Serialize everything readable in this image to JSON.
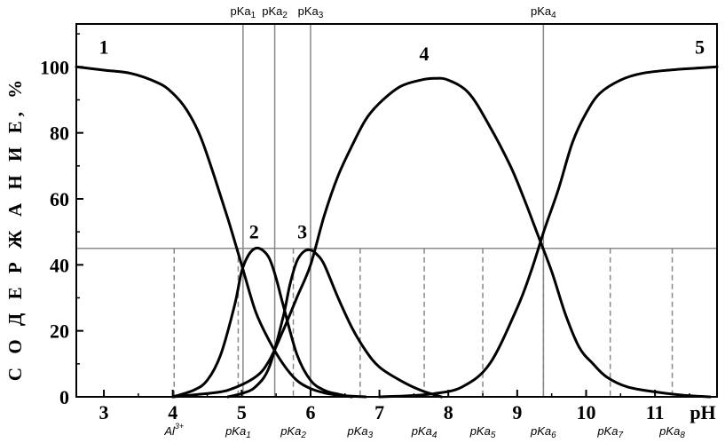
{
  "chart_data": {
    "type": "line",
    "title": "",
    "xlabel": "pH",
    "ylabel": "С О Д Е Р Ж А Н И Е, %",
    "xlim": [
      2.6,
      11.9
    ],
    "ylim": [
      0,
      113
    ],
    "x_ticks": [
      "3",
      "4",
      "5",
      "6",
      "7",
      "8",
      "9",
      "10",
      "11"
    ],
    "y_ticks": [
      "0",
      "20",
      "40",
      "60",
      "80",
      "100"
    ],
    "grid": false,
    "series": [
      {
        "name": "1",
        "x": [
          2.6,
          3.0,
          3.4,
          3.8,
          4.0,
          4.2,
          4.4,
          4.6,
          4.8,
          5.0,
          5.2,
          5.4,
          5.6,
          5.8,
          6.0,
          6.2,
          6.4,
          6.6,
          6.8
        ],
        "values": [
          100,
          99,
          98,
          95,
          92,
          87,
          79,
          67,
          54,
          40,
          26,
          17,
          10,
          5,
          2.5,
          1.2,
          0.5,
          0.2,
          0
        ]
      },
      {
        "name": "2",
        "x": [
          4.0,
          4.3,
          4.5,
          4.7,
          4.9,
          5.0,
          5.1,
          5.2,
          5.3,
          5.4,
          5.5,
          5.6,
          5.8,
          6.0,
          6.2,
          6.4,
          6.6
        ],
        "values": [
          0,
          2,
          5,
          13,
          28,
          38,
          43,
          45,
          44.5,
          42,
          36,
          28,
          13,
          5,
          2,
          0.8,
          0
        ]
      },
      {
        "name": "3",
        "x": [
          4.8,
          5.0,
          5.2,
          5.4,
          5.6,
          5.7,
          5.8,
          5.9,
          6.0,
          6.1,
          6.2,
          6.4,
          6.6,
          6.8,
          7.0,
          7.3,
          7.6,
          7.9
        ],
        "values": [
          0,
          1,
          3,
          9,
          24,
          34,
          41,
          44,
          44.5,
          43,
          40,
          30,
          21,
          14,
          9,
          5,
          2,
          0
        ]
      },
      {
        "name": "4",
        "x": [
          4.0,
          4.4,
          4.8,
          5.2,
          5.4,
          5.6,
          5.8,
          6.0,
          6.2,
          6.4,
          6.6,
          6.8,
          7.0,
          7.3,
          7.6,
          7.8,
          8.0,
          8.3,
          8.6,
          8.9,
          9.1,
          9.3,
          9.5,
          9.7,
          9.9,
          10.1,
          10.3,
          10.6,
          11.0,
          11.4,
          11.8
        ],
        "values": [
          0,
          0.8,
          2,
          6,
          11,
          20,
          30,
          40,
          55,
          67,
          76,
          84,
          89,
          94,
          96,
          96.5,
          96,
          92,
          82,
          70,
          60,
          49,
          38,
          25,
          15,
          10,
          6,
          3,
          1.5,
          0.5,
          0
        ]
      },
      {
        "name": "5",
        "x": [
          7.0,
          7.4,
          7.8,
          8.2,
          8.6,
          9.0,
          9.2,
          9.4,
          9.6,
          9.8,
          10.0,
          10.2,
          10.5,
          10.8,
          11.2,
          11.6,
          11.9
        ],
        "values": [
          0,
          0.3,
          1,
          3,
          10,
          27,
          38,
          51,
          63,
          77,
          86,
          92,
          96,
          98,
          99,
          99.6,
          100
        ]
      }
    ],
    "curve_labels": [
      {
        "text": "1",
        "x": 3.0,
        "y": 104
      },
      {
        "text": "2",
        "x": 5.18,
        "y": 48
      },
      {
        "text": "3",
        "x": 5.88,
        "y": 48
      },
      {
        "text": "4",
        "x": 7.65,
        "y": 102
      },
      {
        "text": "5",
        "x": 11.65,
        "y": 104
      }
    ],
    "reference_lines": {
      "horizontal_y": 45,
      "solid_vertical": [
        {
          "x": 5.02,
          "label_main": "pKa",
          "label_sub": "1"
        },
        {
          "x": 5.48,
          "label_main": "pKa",
          "label_sub": "2"
        },
        {
          "x": 6.0,
          "label_main": "pKa",
          "label_sub": "3"
        },
        {
          "x": 9.38,
          "label_main": "pKa",
          "label_sub": "4"
        }
      ],
      "dashed_vertical": [
        {
          "x": 4.02,
          "label_main": "Al",
          "label_sup": "3+"
        },
        {
          "x": 4.95,
          "label_main": "pKa",
          "label_sub": "1"
        },
        {
          "x": 5.75,
          "label_main": "pKa",
          "label_sub": "2"
        },
        {
          "x": 6.72,
          "label_main": "pKa",
          "label_sub": "3"
        },
        {
          "x": 7.65,
          "label_main": "pKa",
          "label_sub": "4"
        },
        {
          "x": 8.5,
          "label_main": "pKa",
          "label_sub": "5"
        },
        {
          "x": 9.38,
          "label_main": "pKa",
          "label_sub": "6"
        },
        {
          "x": 10.35,
          "label_main": "pKa",
          "label_sub": "7"
        },
        {
          "x": 11.25,
          "label_main": "pKa",
          "label_sub": "8"
        }
      ]
    },
    "colors": {
      "curve": "#000000",
      "reference": "#888888",
      "axis": "#000000"
    }
  }
}
